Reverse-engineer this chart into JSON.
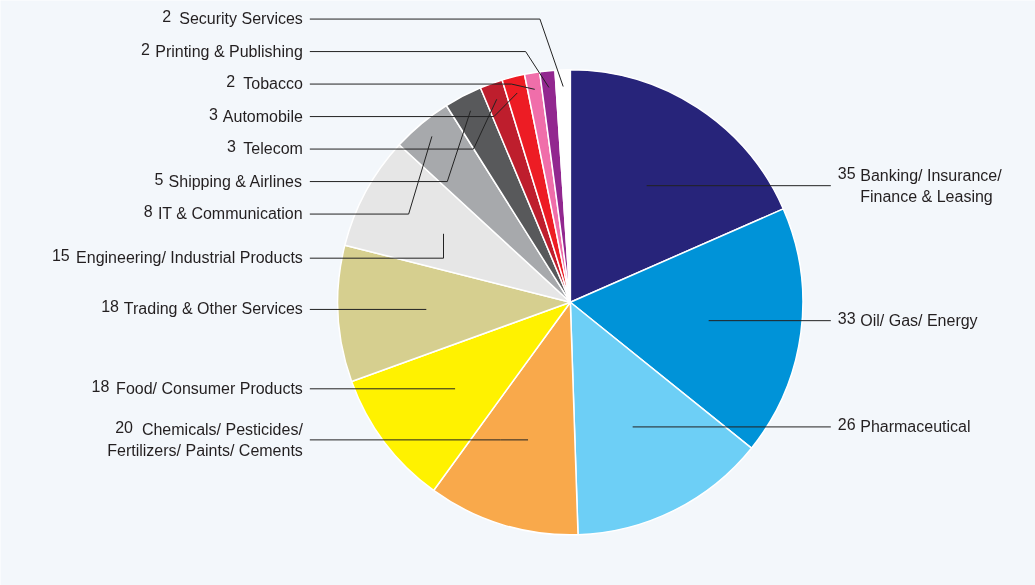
{
  "chart_data": {
    "type": "pie",
    "categories": [
      "Banking/ Insurance/ Finance & Leasing",
      "Oil/ Gas/ Energy",
      "Pharmaceutical",
      "Chemicals/ Pesticides/ Fertilizers/ Paints/ Cements",
      "Food/ Consumer Products",
      "Trading & Other Services",
      "Engineering/ Industrial Products",
      "IT & Communication",
      "Shipping & Airlines",
      "Telecom",
      "Automobile",
      "Tobacco",
      "Printing & Publishing",
      "Security Services"
    ],
    "values": [
      35,
      33,
      26,
      20,
      18,
      18,
      15,
      8,
      5,
      3,
      3,
      2,
      2,
      2
    ],
    "colors": [
      "#27247a",
      "#0093d8",
      "#6dcff6",
      "#f9a94b",
      "#fff200",
      "#d6cf8f",
      "#e6e6e6",
      "#a7a9ac",
      "#58595b",
      "#be1e2d",
      "#ed1c24",
      "#f06eaa",
      "#92278f",
      "#ffffff"
    ],
    "value_labels": [
      "35",
      "33",
      "26",
      "20",
      "18",
      "18",
      "15",
      "8",
      "5",
      "3",
      "3",
      "2",
      "2",
      "2"
    ]
  }
}
